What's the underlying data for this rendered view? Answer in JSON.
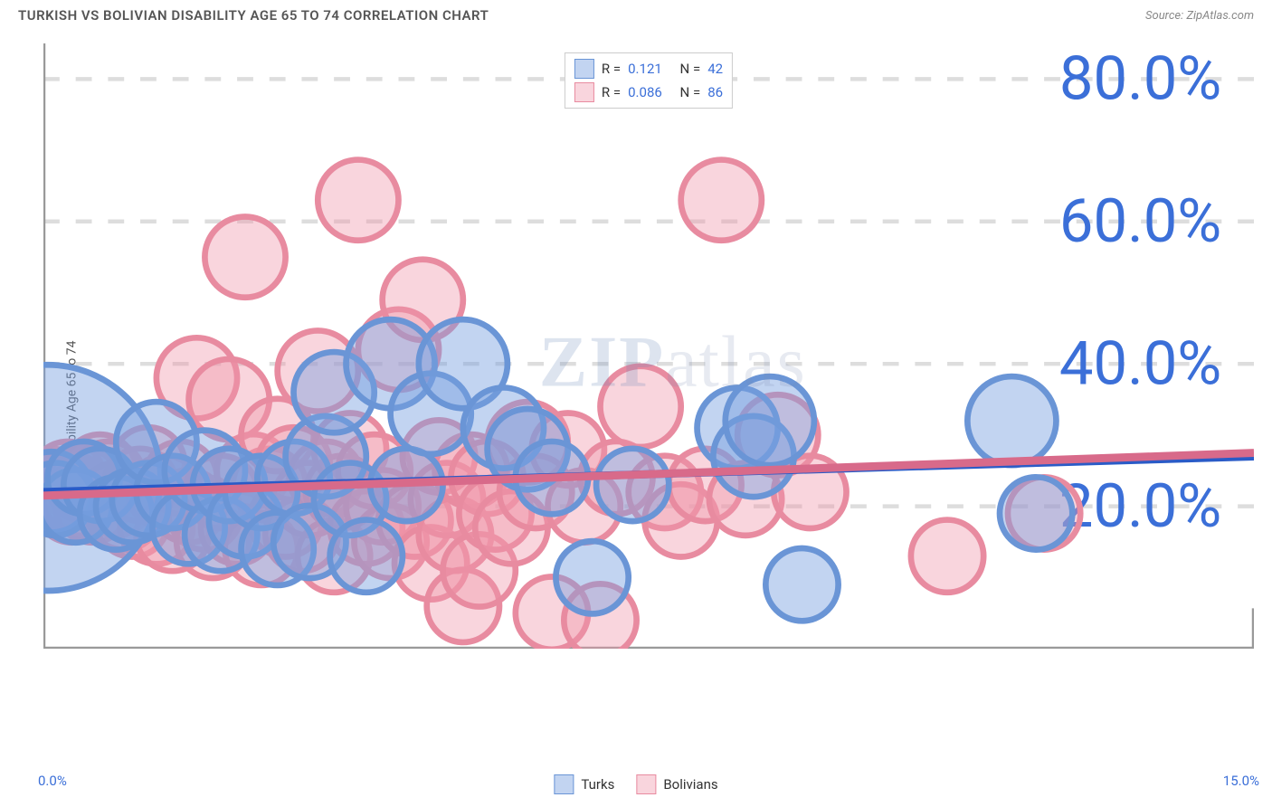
{
  "title": "TURKISH VS BOLIVIAN DISABILITY AGE 65 TO 74 CORRELATION CHART",
  "source_label": "Source:",
  "source_name": "ZipAtlas.com",
  "y_axis_label": "Disability Age 65 to 74",
  "watermark": {
    "bold": "ZIP",
    "rest": "atlas"
  },
  "chart": {
    "type": "scatter",
    "background_color": "#ffffff",
    "grid_color": "#dddddd",
    "axis_color": "#999999",
    "xlim": [
      0,
      15
    ],
    "ylim": [
      0,
      85
    ],
    "x_end_labels": [
      "0.0%",
      "15.0%"
    ],
    "y_tick_values": [
      20,
      40,
      60,
      80
    ],
    "y_tick_labels": [
      "20.0%",
      "40.0%",
      "60.0%",
      "80.0%"
    ],
    "x_minor_ticks": [
      1.5,
      3.0,
      4.5,
      6.0,
      7.5,
      9.0,
      10.5,
      12.0,
      13.5
    ]
  },
  "series": {
    "turks": {
      "label": "Turks",
      "fill_color": "rgba(120,160,225,0.45)",
      "stroke_color": "#6a95d6",
      "trend_color": "#2a5bc7",
      "R": "0.121",
      "N": "42",
      "trend": {
        "x1": 0,
        "y1": 22.0,
        "x2": 15,
        "y2": 27.0
      },
      "points": [
        {
          "x": 0.05,
          "y": 24,
          "r": 28
        },
        {
          "x": 0.1,
          "y": 22,
          "r": 10
        },
        {
          "x": 0.15,
          "y": 21,
          "r": 9
        },
        {
          "x": 0.4,
          "y": 20,
          "r": 9
        },
        {
          "x": 0.5,
          "y": 24,
          "r": 9
        },
        {
          "x": 0.7,
          "y": 23,
          "r": 9
        },
        {
          "x": 0.9,
          "y": 19,
          "r": 9
        },
        {
          "x": 1.1,
          "y": 20,
          "r": 9
        },
        {
          "x": 1.3,
          "y": 21,
          "r": 9
        },
        {
          "x": 1.4,
          "y": 29,
          "r": 10
        },
        {
          "x": 1.6,
          "y": 22,
          "r": 9
        },
        {
          "x": 1.8,
          "y": 17,
          "r": 9
        },
        {
          "x": 2.0,
          "y": 25,
          "r": 10
        },
        {
          "x": 2.2,
          "y": 16,
          "r": 9
        },
        {
          "x": 2.3,
          "y": 23,
          "r": 9
        },
        {
          "x": 2.5,
          "y": 18,
          "r": 9
        },
        {
          "x": 2.7,
          "y": 22,
          "r": 9
        },
        {
          "x": 2.9,
          "y": 14,
          "r": 9
        },
        {
          "x": 3.1,
          "y": 24,
          "r": 9
        },
        {
          "x": 3.3,
          "y": 15,
          "r": 9
        },
        {
          "x": 3.5,
          "y": 27,
          "r": 10
        },
        {
          "x": 3.6,
          "y": 36,
          "r": 10
        },
        {
          "x": 3.8,
          "y": 21,
          "r": 9
        },
        {
          "x": 4.0,
          "y": 13,
          "r": 9
        },
        {
          "x": 4.3,
          "y": 40,
          "r": 11
        },
        {
          "x": 4.5,
          "y": 23,
          "r": 9
        },
        {
          "x": 4.8,
          "y": 33,
          "r": 10
        },
        {
          "x": 5.2,
          "y": 40,
          "r": 11
        },
        {
          "x": 5.7,
          "y": 31,
          "r": 10
        },
        {
          "x": 6.0,
          "y": 28,
          "r": 10
        },
        {
          "x": 6.3,
          "y": 24,
          "r": 9
        },
        {
          "x": 6.8,
          "y": 10,
          "r": 9
        },
        {
          "x": 7.3,
          "y": 23,
          "r": 9
        },
        {
          "x": 8.6,
          "y": 31,
          "r": 10
        },
        {
          "x": 8.8,
          "y": 27,
          "r": 10
        },
        {
          "x": 9.4,
          "y": 9,
          "r": 9
        },
        {
          "x": 9.0,
          "y": 32,
          "r": 11
        },
        {
          "x": 12.0,
          "y": 32,
          "r": 11
        },
        {
          "x": 12.3,
          "y": 19,
          "r": 9
        }
      ]
    },
    "bolivians": {
      "label": "Bolivians",
      "fill_color": "rgba(240,150,170,0.40)",
      "stroke_color": "#e88ba0",
      "trend_color": "#d86a8a",
      "R": "0.086",
      "N": "86",
      "trend": {
        "x1": 0,
        "y1": 21.5,
        "x2": 15,
        "y2": 27.5
      },
      "points": [
        {
          "x": 0.1,
          "y": 23,
          "r": 9
        },
        {
          "x": 0.15,
          "y": 21,
          "r": 9
        },
        {
          "x": 0.2,
          "y": 22,
          "r": 9
        },
        {
          "x": 0.25,
          "y": 22.5,
          "r": 9
        },
        {
          "x": 0.3,
          "y": 24,
          "r": 9
        },
        {
          "x": 0.35,
          "y": 20,
          "r": 9
        },
        {
          "x": 0.4,
          "y": 22,
          "r": 9
        },
        {
          "x": 0.45,
          "y": 21,
          "r": 9
        },
        {
          "x": 0.5,
          "y": 23,
          "r": 9
        },
        {
          "x": 0.6,
          "y": 20,
          "r": 9
        },
        {
          "x": 0.7,
          "y": 25,
          "r": 9
        },
        {
          "x": 0.8,
          "y": 24,
          "r": 9
        },
        {
          "x": 0.9,
          "y": 21,
          "r": 9
        },
        {
          "x": 1.0,
          "y": 19,
          "r": 9
        },
        {
          "x": 1.1,
          "y": 18,
          "r": 9
        },
        {
          "x": 1.2,
          "y": 23,
          "r": 9
        },
        {
          "x": 1.3,
          "y": 26,
          "r": 9
        },
        {
          "x": 1.4,
          "y": 17,
          "r": 9
        },
        {
          "x": 1.5,
          "y": 22,
          "r": 9
        },
        {
          "x": 1.6,
          "y": 16,
          "r": 9
        },
        {
          "x": 1.7,
          "y": 24,
          "r": 9
        },
        {
          "x": 1.8,
          "y": 20,
          "r": 9
        },
        {
          "x": 1.9,
          "y": 38,
          "r": 10
        },
        {
          "x": 2.0,
          "y": 19,
          "r": 9
        },
        {
          "x": 2.1,
          "y": 15,
          "r": 9
        },
        {
          "x": 2.2,
          "y": 22,
          "r": 9
        },
        {
          "x": 2.3,
          "y": 35,
          "r": 10
        },
        {
          "x": 2.4,
          "y": 17,
          "r": 9
        },
        {
          "x": 2.5,
          "y": 55,
          "r": 10
        },
        {
          "x": 2.6,
          "y": 25,
          "r": 9
        },
        {
          "x": 2.7,
          "y": 14,
          "r": 9
        },
        {
          "x": 2.8,
          "y": 23,
          "r": 9
        },
        {
          "x": 2.9,
          "y": 30,
          "r": 9
        },
        {
          "x": 3.0,
          "y": 18,
          "r": 9
        },
        {
          "x": 3.1,
          "y": 26,
          "r": 9
        },
        {
          "x": 3.2,
          "y": 16,
          "r": 9
        },
        {
          "x": 3.3,
          "y": 21,
          "r": 9
        },
        {
          "x": 3.4,
          "y": 39,
          "r": 10
        },
        {
          "x": 3.5,
          "y": 24,
          "r": 9
        },
        {
          "x": 3.6,
          "y": 13,
          "r": 9
        },
        {
          "x": 3.7,
          "y": 22,
          "r": 9
        },
        {
          "x": 3.8,
          "y": 28,
          "r": 9
        },
        {
          "x": 3.9,
          "y": 63,
          "r": 10
        },
        {
          "x": 4.0,
          "y": 17,
          "r": 9
        },
        {
          "x": 4.1,
          "y": 25,
          "r": 9
        },
        {
          "x": 4.2,
          "y": 20,
          "r": 9
        },
        {
          "x": 4.3,
          "y": 15,
          "r": 9
        },
        {
          "x": 4.4,
          "y": 42,
          "r": 10
        },
        {
          "x": 4.5,
          "y": 23,
          "r": 9
        },
        {
          "x": 4.6,
          "y": 18,
          "r": 9
        },
        {
          "x": 4.7,
          "y": 49,
          "r": 10
        },
        {
          "x": 4.8,
          "y": 12,
          "r": 9
        },
        {
          "x": 4.9,
          "y": 27,
          "r": 9
        },
        {
          "x": 5.0,
          "y": 21,
          "r": 9
        },
        {
          "x": 5.1,
          "y": 16,
          "r": 9
        },
        {
          "x": 5.2,
          "y": 6,
          "r": 9
        },
        {
          "x": 5.3,
          "y": 25,
          "r": 9
        },
        {
          "x": 5.4,
          "y": 11,
          "r": 9
        },
        {
          "x": 5.5,
          "y": 24,
          "r": 9
        },
        {
          "x": 5.6,
          "y": 19,
          "r": 9
        },
        {
          "x": 5.8,
          "y": 17,
          "r": 9
        },
        {
          "x": 6.0,
          "y": 29,
          "r": 10
        },
        {
          "x": 6.1,
          "y": 22,
          "r": 9
        },
        {
          "x": 6.3,
          "y": 5,
          "r": 9
        },
        {
          "x": 6.5,
          "y": 28,
          "r": 9
        },
        {
          "x": 6.7,
          "y": 20,
          "r": 9
        },
        {
          "x": 6.9,
          "y": 4,
          "r": 9
        },
        {
          "x": 7.1,
          "y": 24,
          "r": 9
        },
        {
          "x": 7.4,
          "y": 34,
          "r": 10
        },
        {
          "x": 7.7,
          "y": 22,
          "r": 9
        },
        {
          "x": 7.9,
          "y": 18,
          "r": 9
        },
        {
          "x": 8.2,
          "y": 23,
          "r": 9
        },
        {
          "x": 8.4,
          "y": 63,
          "r": 10
        },
        {
          "x": 8.7,
          "y": 21,
          "r": 9
        },
        {
          "x": 9.1,
          "y": 30,
          "r": 10
        },
        {
          "x": 9.5,
          "y": 22,
          "r": 9
        },
        {
          "x": 11.2,
          "y": 13,
          "r": 9
        },
        {
          "x": 12.4,
          "y": 19,
          "r": 9
        }
      ]
    }
  },
  "legend_labels": {
    "R": "R =",
    "N": "N ="
  }
}
